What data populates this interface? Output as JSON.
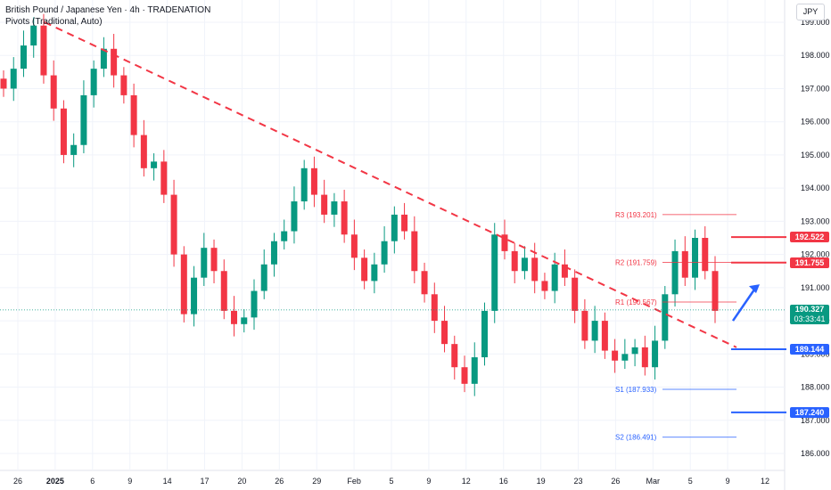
{
  "header": {
    "title": "British Pound / Japanese Yen · 4h · TRADENATION",
    "indicator": "Pivots (Traditional, Auto)"
  },
  "currency_label": "JPY",
  "current_price": {
    "value": "190.327",
    "countdown": "03:33:41"
  },
  "price_tags": [
    {
      "value": "192.522",
      "color": "#f23645"
    },
    {
      "value": "191.755",
      "color": "#f23645"
    },
    {
      "value": "189.144",
      "color": "#2962ff"
    },
    {
      "value": "187.240",
      "color": "#2962ff"
    }
  ],
  "chart_data": {
    "type": "candlestick",
    "ylim": [
      185.5,
      199.5
    ],
    "y_ticks": [
      "186.000",
      "187.000",
      "188.000",
      "189.000",
      "190.000",
      "191.000",
      "192.000",
      "193.000",
      "194.000",
      "195.000",
      "196.000",
      "197.000",
      "198.000",
      "199.000"
    ],
    "x_ticks": [
      "26",
      "2025",
      "6",
      "9",
      "14",
      "17",
      "20",
      "26",
      "29",
      "Feb",
      "5",
      "9",
      "12",
      "16",
      "19",
      "23",
      "26",
      "Mar",
      "5",
      "9",
      "12"
    ],
    "pivots": [
      {
        "label": "R3 (193.201)",
        "value": 193.201,
        "color": "#f23645"
      },
      {
        "label": "R2 (191.759)",
        "value": 191.759,
        "color": "#f23645"
      },
      {
        "label": "R1 (190.567)",
        "value": 190.567,
        "color": "#f23645"
      },
      {
        "label": "S1 (187.933)",
        "value": 187.933,
        "color": "#2962ff"
      },
      {
        "label": "S2 (186.491)",
        "value": 186.491,
        "color": "#2962ff"
      }
    ],
    "levels": [
      192.522,
      191.755,
      189.144,
      187.24
    ],
    "current": 190.327,
    "trendline": {
      "from": 199.0,
      "to": 189.2
    },
    "colors": {
      "up": "#089981",
      "down": "#f23645",
      "grid": "#f0f3fa"
    },
    "closes": [
      197.0,
      197.6,
      198.3,
      198.9,
      197.4,
      196.4,
      195.0,
      195.3,
      196.8,
      197.6,
      198.2,
      197.4,
      196.8,
      195.6,
      194.6,
      194.8,
      193.8,
      192.0,
      190.2,
      191.3,
      192.2,
      191.5,
      190.3,
      189.9,
      190.1,
      190.9,
      191.7,
      192.4,
      192.7,
      193.6,
      194.6,
      193.8,
      193.2,
      193.6,
      192.6,
      191.9,
      191.2,
      191.7,
      192.4,
      193.2,
      192.7,
      191.5,
      190.8,
      190.0,
      189.3,
      188.6,
      188.1,
      188.9,
      190.3,
      192.6,
      192.1,
      191.5,
      191.9,
      191.2,
      190.9,
      191.7,
      191.3,
      190.3,
      189.4,
      190.0,
      189.1,
      188.8,
      189.0,
      189.2,
      188.6,
      189.4,
      190.8,
      192.1,
      191.3,
      192.5,
      191.5,
      190.3
    ]
  }
}
